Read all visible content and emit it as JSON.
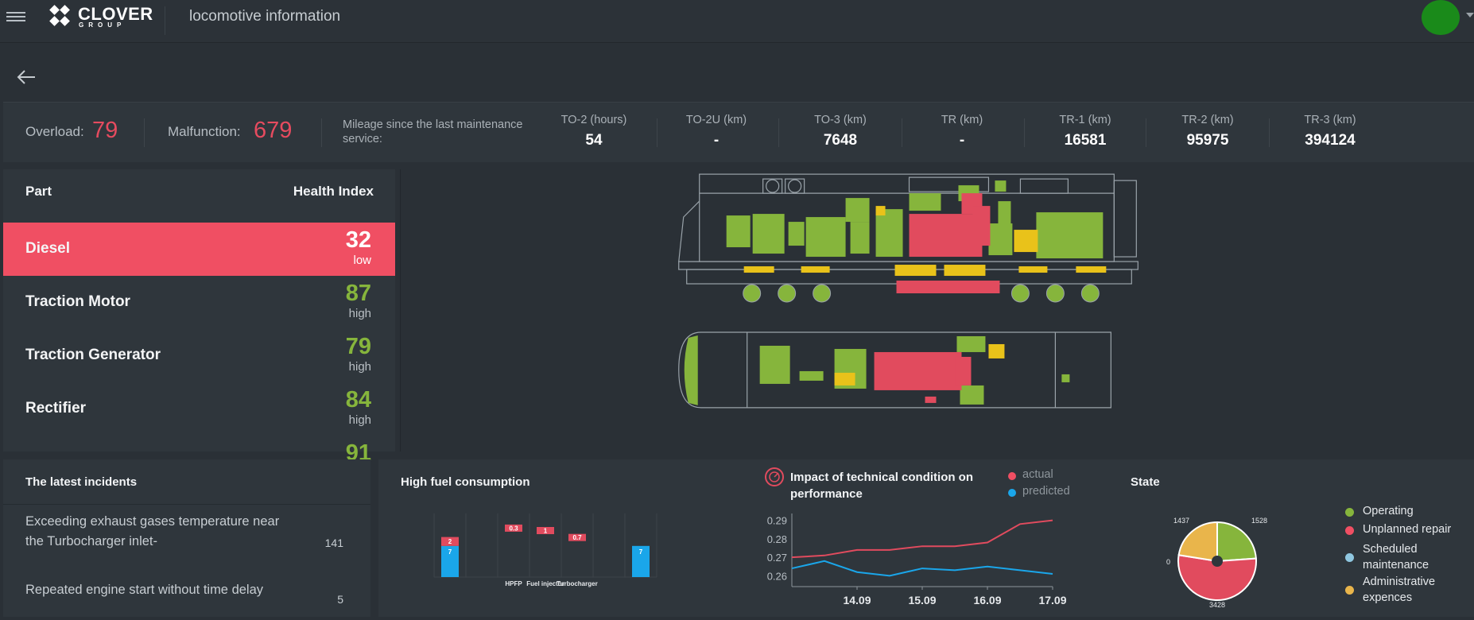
{
  "header": {
    "logo_text": "CLOVER",
    "logo_sub": "GROUP",
    "title": "locomotive information"
  },
  "stats": {
    "overload_label": "Overload:",
    "overload_value": "79",
    "malfunction_label": "Malfunction:",
    "malfunction_value": "679",
    "mileage_label": "Mileage since the last maintenance service:",
    "columns": [
      {
        "label": "TO-2 (hours)",
        "value": "54"
      },
      {
        "label": "TO-2U (km)",
        "value": "-"
      },
      {
        "label": "TO-3 (km)",
        "value": "7648"
      },
      {
        "label": "TR (km)",
        "value": "-"
      },
      {
        "label": "TR-1 (km)",
        "value": "16581"
      },
      {
        "label": "TR-2 (km)",
        "value": "95975"
      },
      {
        "label": "TR-3 (km)",
        "value": "394124"
      }
    ]
  },
  "parts": {
    "col_part": "Part",
    "col_health": "Health Index",
    "rows": [
      {
        "name": "Diesel",
        "value": "32",
        "level": "low"
      },
      {
        "name": "Traction Motor",
        "value": "87",
        "level": "high"
      },
      {
        "name": "Traction Generator",
        "value": "79",
        "level": "high"
      },
      {
        "name": "Rectifier",
        "value": "84",
        "level": "high"
      },
      {
        "name": "",
        "value": "91",
        "level": ""
      }
    ]
  },
  "incidents": {
    "title": "The latest incidents",
    "items": [
      {
        "text": "Exceeding exhaust gases temperature near the Turbocharger inlet-",
        "count": "141"
      },
      {
        "text": "Repeated engine start without time delay",
        "count": "5"
      }
    ]
  },
  "fuel": {
    "title": "High fuel consumption"
  },
  "impact": {
    "title": "Impact of technical condition on performance",
    "legend_actual": "actual",
    "legend_predicted": "predicted"
  },
  "state": {
    "title": "State",
    "legend": [
      "Operating",
      "Unplanned repair",
      "Scheduled maintenance",
      "Administrative expences"
    ]
  },
  "colors": {
    "accent_red": "#f04f63",
    "green": "#86b53c",
    "blue": "#1aa6ea",
    "yellow": "#e9b54b",
    "light_blue": "#8fc7e0"
  },
  "chart_data": [
    {
      "type": "bar",
      "title": "High fuel consumption",
      "categories": [
        "",
        "",
        "HPFP",
        "Fuel injector",
        "Turbocharger",
        "",
        ""
      ],
      "series": [
        {
          "values": [
            7,
            null,
            null,
            null,
            null,
            null,
            7
          ]
        },
        {
          "values": [
            2,
            null,
            0.3,
            1,
            0.7,
            null,
            null
          ]
        }
      ]
    },
    {
      "type": "line",
      "title": "Impact of technical condition on performance",
      "x": [
        "13.09",
        "13.5",
        "14.09",
        "14.5",
        "15.09",
        "15.5",
        "16.09",
        "16.5",
        "17.09"
      ],
      "xticks": [
        "14.09",
        "15.09",
        "16.09",
        "17.09"
      ],
      "ylim": [
        0.255,
        0.292
      ],
      "yticks": [
        "0.26",
        "0.27",
        "0.28",
        "0.29"
      ],
      "series": [
        {
          "name": "actual",
          "values": [
            0.27,
            0.271,
            0.274,
            0.274,
            0.276,
            0.276,
            0.278,
            0.288,
            0.29
          ]
        },
        {
          "name": "predicted",
          "values": [
            0.264,
            0.268,
            0.262,
            0.26,
            0.264,
            0.263,
            0.265,
            0.263,
            0.261
          ]
        }
      ]
    },
    {
      "type": "pie",
      "title": "State",
      "labels": [
        "Operating",
        "Unplanned repair",
        "Scheduled maintenance",
        "Administrative expences"
      ],
      "values": [
        1528,
        3428,
        0,
        1437
      ],
      "value_labels": [
        "1528",
        "3428",
        "0",
        "1437"
      ]
    }
  ]
}
